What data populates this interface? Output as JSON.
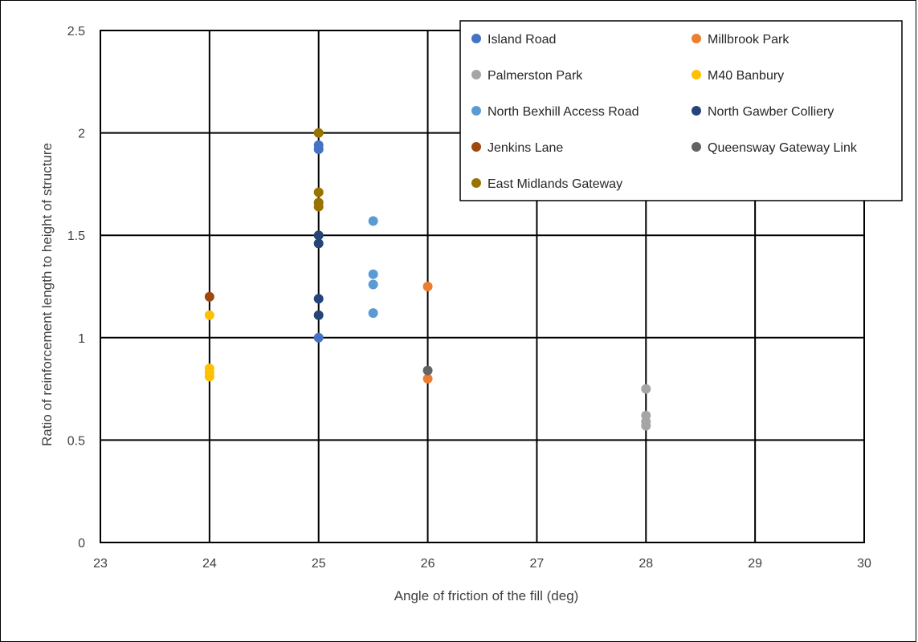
{
  "chart_data": {
    "type": "scatter",
    "title": "",
    "xlabel": "Angle of friction of the fill (deg)",
    "ylabel": "Ratio of reinforcement length to height of structure",
    "xlim": [
      23,
      30
    ],
    "ylim": [
      0,
      2.5
    ],
    "xticks": [
      "23",
      "24",
      "25",
      "26",
      "27",
      "28",
      "29",
      "30"
    ],
    "yticks": [
      "0",
      "0.5",
      "1",
      "1.5",
      "2",
      "2.5"
    ],
    "grid": true,
    "legend_position": "top-right",
    "series": [
      {
        "name": "Island Road",
        "color": "#4472C4",
        "points": [
          [
            25,
            1.94
          ],
          [
            25,
            1.92
          ],
          [
            25,
            1.0
          ]
        ]
      },
      {
        "name": "Millbrook Park",
        "color": "#ED7D31",
        "points": [
          [
            26,
            1.25
          ],
          [
            26,
            0.8
          ]
        ]
      },
      {
        "name": "Palmerston Park",
        "color": "#A5A5A5",
        "points": [
          [
            28,
            0.75
          ],
          [
            28,
            0.62
          ],
          [
            28,
            0.59
          ],
          [
            28,
            0.57
          ]
        ]
      },
      {
        "name": "M40 Banbury",
        "color": "#FFC000",
        "points": [
          [
            24,
            1.11
          ],
          [
            24,
            0.85
          ],
          [
            24,
            0.83
          ],
          [
            24,
            0.81
          ]
        ]
      },
      {
        "name": "North Bexhill Access Road",
        "color": "#5B9BD5",
        "points": [
          [
            25.5,
            1.57
          ],
          [
            25.5,
            1.31
          ],
          [
            25.5,
            1.26
          ],
          [
            25.5,
            1.12
          ]
        ]
      },
      {
        "name": "North Gawber Colliery",
        "color": "#264478",
        "points": [
          [
            25,
            1.5
          ],
          [
            25,
            1.46
          ],
          [
            25,
            1.19
          ],
          [
            25,
            1.11
          ]
        ]
      },
      {
        "name": "Jenkins Lane",
        "color": "#9E480E",
        "points": [
          [
            24,
            1.2
          ]
        ]
      },
      {
        "name": "Queensway Gateway Link",
        "color": "#636363",
        "points": [
          [
            26,
            0.84
          ]
        ]
      },
      {
        "name": "East Midlands Gateway",
        "color": "#997300",
        "points": [
          [
            25,
            2.0
          ],
          [
            25,
            1.71
          ],
          [
            25,
            1.66
          ],
          [
            25,
            1.64
          ]
        ]
      }
    ]
  }
}
